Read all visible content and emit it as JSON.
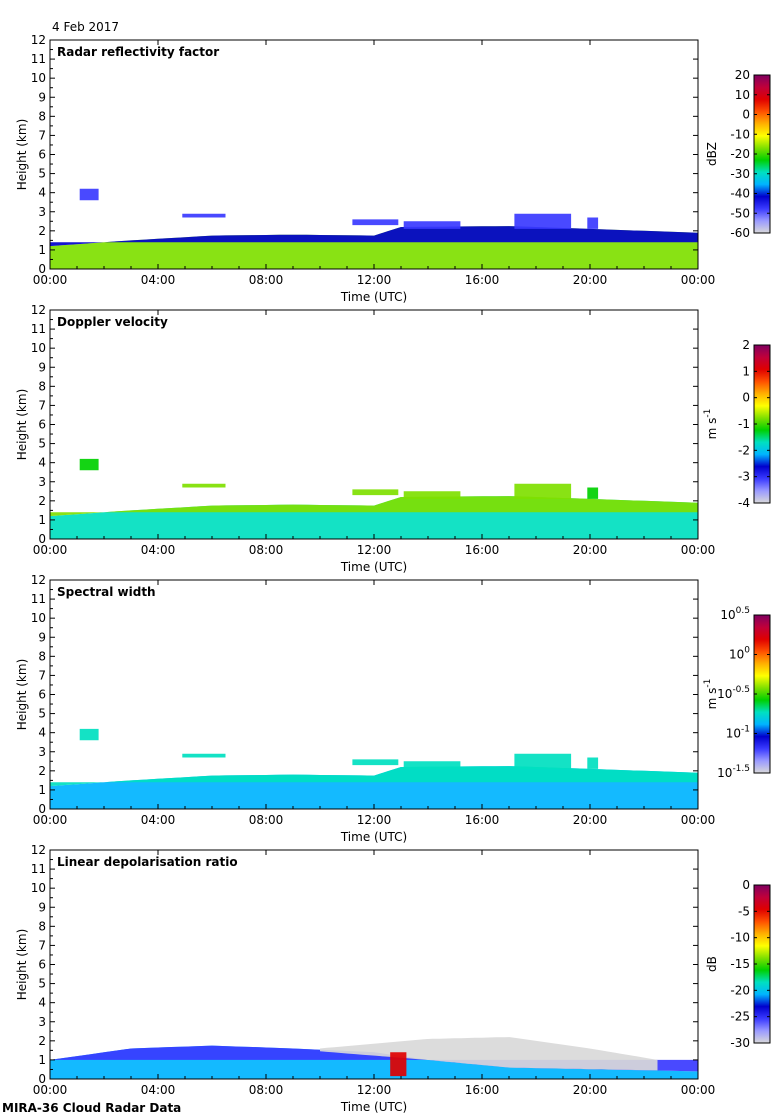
{
  "figure": {
    "date": "4 Feb 2017",
    "footer": "MIRA-36 Cloud Radar Data"
  },
  "colormap": [
    "#d9d9d9",
    "#9a9aff",
    "#3a3aff",
    "#0000cd",
    "#00b4ff",
    "#00e0c0",
    "#00d000",
    "#7fe000",
    "#ffff00",
    "#ffb000",
    "#ff5000",
    "#e00000",
    "#c0003a",
    "#800060"
  ],
  "chart_data": [
    {
      "type": "heatmap",
      "title": "Radar reflectivity factor",
      "xlabel": "Time (UTC)",
      "ylabel": "Height (km)",
      "xlim": [
        0,
        24
      ],
      "ylim": [
        0,
        12
      ],
      "x_ticks": [
        "00:00",
        "04:00",
        "08:00",
        "12:00",
        "16:00",
        "20:00",
        "00:00"
      ],
      "y_ticks": [
        "0",
        "1",
        "2",
        "3",
        "4",
        "5",
        "6",
        "7",
        "8",
        "9",
        "10",
        "11",
        "12"
      ],
      "colorbar": {
        "label": "dBZ",
        "min": -60,
        "max": 20,
        "ticks": [
          {
            "v": 20,
            "t": "20"
          },
          {
            "v": 10,
            "t": "10"
          },
          {
            "v": 0,
            "t": "0"
          },
          {
            "v": -10,
            "t": "-10"
          },
          {
            "v": -20,
            "t": "-20"
          },
          {
            "v": -30,
            "t": "-30"
          },
          {
            "v": -40,
            "t": "-40"
          },
          {
            "v": -50,
            "t": "-50"
          },
          {
            "v": -60,
            "t": "-60"
          }
        ]
      },
      "features": [
        {
          "name": "boundary-layer-cloud",
          "t0": 0,
          "t1": 24,
          "top_km": [
            [
              0,
              1.2
            ],
            [
              3,
              1.5
            ],
            [
              6,
              1.75
            ],
            [
              9,
              1.8
            ],
            [
              12,
              1.75
            ],
            [
              13,
              2.2
            ],
            [
              17,
              2.25
            ],
            [
              24,
              1.9
            ]
          ],
          "base_km": 0,
          "value": -15
        },
        {
          "name": "cloud-top-edge",
          "t0": 0,
          "t1": 24,
          "top_km": [
            [
              0,
              1.2
            ],
            [
              3,
              1.5
            ],
            [
              6,
              1.75
            ],
            [
              9,
              1.8
            ],
            [
              12,
              1.75
            ],
            [
              13,
              2.2
            ],
            [
              17,
              2.25
            ],
            [
              24,
              1.9
            ]
          ],
          "base_km": 1.4,
          "value": -42
        },
        {
          "name": "cell-01h",
          "t0": 1.1,
          "t1": 1.8,
          "base_km": 3.6,
          "top_km": 4.2,
          "value": -45
        },
        {
          "name": "patch-05h",
          "t0": 4.9,
          "t1": 6.5,
          "base_km": 2.7,
          "top_km": 2.9,
          "value": -45
        },
        {
          "name": "patch-12h",
          "t0": 11.2,
          "t1": 12.9,
          "base_km": 2.3,
          "top_km": 2.6,
          "value": -45
        },
        {
          "name": "patch-13h",
          "t0": 13.1,
          "t1": 15.2,
          "base_km": 2.1,
          "top_km": 2.5,
          "value": -45
        },
        {
          "name": "patch-17h",
          "t0": 17.2,
          "t1": 19.3,
          "base_km": 2.1,
          "top_km": 2.9,
          "value": -45
        },
        {
          "name": "patch-20h",
          "t0": 19.9,
          "t1": 20.3,
          "base_km": 2.1,
          "top_km": 2.7,
          "value": -45
        }
      ]
    },
    {
      "type": "heatmap",
      "title": "Doppler velocity",
      "xlabel": "Time (UTC)",
      "ylabel": "Height (km)",
      "xlim": [
        0,
        24
      ],
      "ylim": [
        0,
        12
      ],
      "x_ticks": [
        "00:00",
        "04:00",
        "08:00",
        "12:00",
        "16:00",
        "20:00",
        "00:00"
      ],
      "y_ticks": [
        "0",
        "1",
        "2",
        "3",
        "4",
        "5",
        "6",
        "7",
        "8",
        "9",
        "10",
        "11",
        "12"
      ],
      "colorbar": {
        "label": "m s-1",
        "min": -4,
        "max": 2,
        "ticks": [
          {
            "v": 2,
            "t": "2"
          },
          {
            "v": 1,
            "t": "1"
          },
          {
            "v": 0,
            "t": "0"
          },
          {
            "v": -1,
            "t": "-1"
          },
          {
            "v": -2,
            "t": "-2"
          },
          {
            "v": -3,
            "t": "-3"
          },
          {
            "v": -4,
            "t": "-4"
          }
        ]
      },
      "features": [
        {
          "name": "boundary-layer-cloud",
          "t0": 0,
          "t1": 24,
          "top_km": [
            [
              0,
              1.2
            ],
            [
              3,
              1.5
            ],
            [
              6,
              1.75
            ],
            [
              9,
              1.8
            ],
            [
              12,
              1.75
            ],
            [
              13,
              2.2
            ],
            [
              17,
              2.25
            ],
            [
              24,
              1.9
            ]
          ],
          "base_km": 0,
          "value": -1.5
        },
        {
          "name": "cloud-top-edge",
          "t0": 0,
          "t1": 24,
          "top_km": [
            [
              0,
              1.2
            ],
            [
              3,
              1.5
            ],
            [
              6,
              1.75
            ],
            [
              9,
              1.8
            ],
            [
              12,
              1.75
            ],
            [
              13,
              2.2
            ],
            [
              17,
              2.25
            ],
            [
              24,
              1.9
            ]
          ],
          "base_km": 1.4,
          "value": -0.8
        },
        {
          "name": "cell-01h",
          "t0": 1.1,
          "t1": 1.8,
          "base_km": 3.6,
          "top_km": 4.2,
          "value": -1.2
        },
        {
          "name": "patch-05h",
          "t0": 4.9,
          "t1": 6.5,
          "base_km": 2.7,
          "top_km": 2.9,
          "value": -0.9
        },
        {
          "name": "patch-12h",
          "t0": 11.2,
          "t1": 12.9,
          "base_km": 2.3,
          "top_km": 2.6,
          "value": -0.9
        },
        {
          "name": "patch-13h",
          "t0": 13.1,
          "t1": 15.2,
          "base_km": 2.1,
          "top_km": 2.5,
          "value": -0.9
        },
        {
          "name": "patch-17h",
          "t0": 17.2,
          "t1": 19.3,
          "base_km": 2.1,
          "top_km": 2.9,
          "value": -0.6
        },
        {
          "name": "patch-20h",
          "t0": 19.9,
          "t1": 20.3,
          "base_km": 2.1,
          "top_km": 2.7,
          "value": -1.4
        }
      ]
    },
    {
      "type": "heatmap",
      "title": "Spectral width",
      "xlabel": "Time (UTC)",
      "ylabel": "Height (km)",
      "xlim": [
        0,
        24
      ],
      "ylim": [
        0,
        12
      ],
      "x_ticks": [
        "00:00",
        "04:00",
        "08:00",
        "12:00",
        "16:00",
        "20:00",
        "00:00"
      ],
      "y_ticks": [
        "0",
        "1",
        "2",
        "3",
        "4",
        "5",
        "6",
        "7",
        "8",
        "9",
        "10",
        "11",
        "12"
      ],
      "colorbar": {
        "label": "m s-1",
        "min": -1.5,
        "max": 0.5,
        "ticks": [
          {
            "v": 0.5,
            "t": "10^0.5"
          },
          {
            "v": 0,
            "t": "10^0"
          },
          {
            "v": -0.5,
            "t": "10^-0.5"
          },
          {
            "v": -1,
            "t": "10^-1"
          },
          {
            "v": -1.5,
            "t": "10^-1.5"
          }
        ]
      },
      "features": [
        {
          "name": "boundary-layer-cloud",
          "t0": 0,
          "t1": 24,
          "top_km": [
            [
              0,
              1.2
            ],
            [
              3,
              1.5
            ],
            [
              6,
              1.75
            ],
            [
              9,
              1.8
            ],
            [
              12,
              1.75
            ],
            [
              13,
              2.2
            ],
            [
              17,
              2.25
            ],
            [
              24,
              1.9
            ]
          ],
          "base_km": 0,
          "value": -0.85
        },
        {
          "name": "cloud-top-edge",
          "t0": 0,
          "t1": 24,
          "top_km": [
            [
              0,
              1.2
            ],
            [
              3,
              1.5
            ],
            [
              6,
              1.75
            ],
            [
              9,
              1.8
            ],
            [
              12,
              1.75
            ],
            [
              13,
              2.2
            ],
            [
              17,
              2.25
            ],
            [
              24,
              1.9
            ]
          ],
          "base_km": 1.4,
          "value": -0.7
        },
        {
          "name": "cell-01h",
          "t0": 1.1,
          "t1": 1.8,
          "base_km": 3.6,
          "top_km": 4.2,
          "value": -0.75
        },
        {
          "name": "patch-05h",
          "t0": 4.9,
          "t1": 6.5,
          "base_km": 2.7,
          "top_km": 2.9,
          "value": -0.75
        },
        {
          "name": "patch-12h",
          "t0": 11.2,
          "t1": 12.9,
          "base_km": 2.3,
          "top_km": 2.6,
          "value": -0.75
        },
        {
          "name": "patch-13h",
          "t0": 13.1,
          "t1": 15.2,
          "base_km": 2.1,
          "top_km": 2.5,
          "value": -0.75
        },
        {
          "name": "patch-17h",
          "t0": 17.2,
          "t1": 19.3,
          "base_km": 2.1,
          "top_km": 2.9,
          "value": -0.75
        },
        {
          "name": "patch-20h",
          "t0": 19.9,
          "t1": 20.3,
          "base_km": 2.1,
          "top_km": 2.7,
          "value": -0.75
        }
      ]
    },
    {
      "type": "heatmap",
      "title": "Linear depolarisation ratio",
      "xlabel": "Time (UTC)",
      "ylabel": "Height (km)",
      "xlim": [
        0,
        24
      ],
      "ylim": [
        0,
        12
      ],
      "x_ticks": [
        "00:00",
        "04:00",
        "08:00",
        "12:00",
        "16:00",
        "20:00",
        "00:00"
      ],
      "y_ticks": [
        "0",
        "1",
        "2",
        "3",
        "4",
        "5",
        "6",
        "7",
        "8",
        "9",
        "10",
        "11",
        "12"
      ],
      "colorbar": {
        "label": "dB",
        "min": -30,
        "max": 0,
        "ticks": [
          {
            "v": 0,
            "t": "0"
          },
          {
            "v": -5,
            "t": "-5"
          },
          {
            "v": -10,
            "t": "-10"
          },
          {
            "v": -15,
            "t": "-15"
          },
          {
            "v": -20,
            "t": "-20"
          },
          {
            "v": -25,
            "t": "-25"
          },
          {
            "v": -30,
            "t": "-30"
          }
        ]
      },
      "features": [
        {
          "name": "depol-layer",
          "t0": 0,
          "t1": 24,
          "top_km": [
            [
              0,
              1.0
            ],
            [
              3,
              1.6
            ],
            [
              6,
              1.75
            ],
            [
              9,
              1.6
            ],
            [
              12,
              1.4
            ],
            [
              14,
              1.0
            ],
            [
              17,
              0.6
            ],
            [
              24,
              0.4
            ]
          ],
          "base_km": 0,
          "value": -20
        },
        {
          "name": "depol-layer-top",
          "t0": 0,
          "t1": 24,
          "top_km": [
            [
              0,
              1.0
            ],
            [
              3,
              1.6
            ],
            [
              6,
              1.75
            ],
            [
              9,
              1.6
            ],
            [
              12,
              1.4
            ],
            [
              14,
              1.0
            ],
            [
              17,
              0.6
            ],
            [
              24,
              0.4
            ]
          ],
          "base_km": 1.0,
          "value": -26
        },
        {
          "name": "no-signal-region",
          "t0": 10,
          "t1": 22.5,
          "top_km": [
            [
              10,
              1.6
            ],
            [
              14,
              2.1
            ],
            [
              17,
              2.2
            ],
            [
              20,
              1.6
            ],
            [
              22.5,
              1.0
            ]
          ],
          "base_km_profile": [
            [
              10,
              1.45
            ],
            [
              14,
              1.0
            ],
            [
              17,
              0.6
            ],
            [
              22.5,
              0.45
            ]
          ],
          "value": -30
        },
        {
          "name": "high-depol-feature",
          "t0": 12.6,
          "t1": 13.2,
          "base_km": 0.15,
          "top_km": 1.4,
          "value": -5
        }
      ]
    }
  ]
}
